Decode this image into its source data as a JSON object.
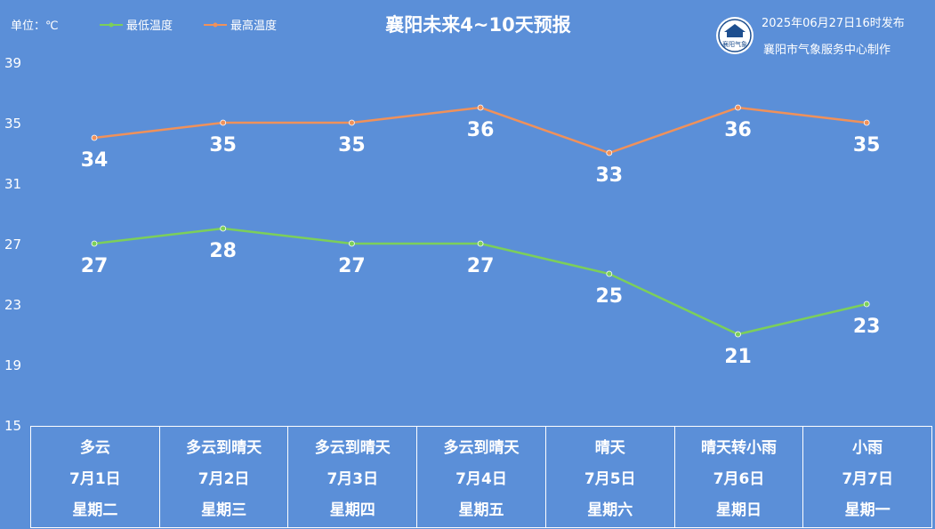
{
  "header": {
    "title": "襄阳未来4~10天预报",
    "unit_label": "单位：℃",
    "publish_time": "2025年06月27日16时发布",
    "maker": "襄阳市气象服务中心制作",
    "logo_text": "襄阳气象"
  },
  "colors": {
    "background": "#5b8fd8",
    "low_series": "#7ccf5a",
    "high_series": "#f0915a",
    "text": "#ffffff"
  },
  "chart_data": {
    "type": "line",
    "title": "襄阳未来4~10天预报",
    "ylabel": "单位：℃",
    "ylim": [
      15,
      39
    ],
    "yticks": [
      39,
      35,
      31,
      27,
      23,
      19,
      15
    ],
    "grid": false,
    "legend_position": "top-left",
    "categories": [
      "7月1日",
      "7月2日",
      "7月3日",
      "7月4日",
      "7月5日",
      "7月6日",
      "7月7日"
    ],
    "series": [
      {
        "name": "最低温度",
        "values": [
          27,
          28,
          27,
          27,
          25,
          21,
          23
        ],
        "color": "#7ccf5a"
      },
      {
        "name": "最高温度",
        "values": [
          34,
          35,
          35,
          36,
          33,
          36,
          35
        ],
        "color": "#f0915a"
      }
    ]
  },
  "forecast_table": [
    {
      "weather": "多云",
      "date": "7月1日",
      "weekday": "星期二"
    },
    {
      "weather": "多云到晴天",
      "date": "7月2日",
      "weekday": "星期三"
    },
    {
      "weather": "多云到晴天",
      "date": "7月3日",
      "weekday": "星期四"
    },
    {
      "weather": "多云到晴天",
      "date": "7月4日",
      "weekday": "星期五"
    },
    {
      "weather": "晴天",
      "date": "7月5日",
      "weekday": "星期六"
    },
    {
      "weather": "晴天转小雨",
      "date": "7月6日",
      "weekday": "星期日"
    },
    {
      "weather": "小雨",
      "date": "7月7日",
      "weekday": "星期一"
    }
  ]
}
